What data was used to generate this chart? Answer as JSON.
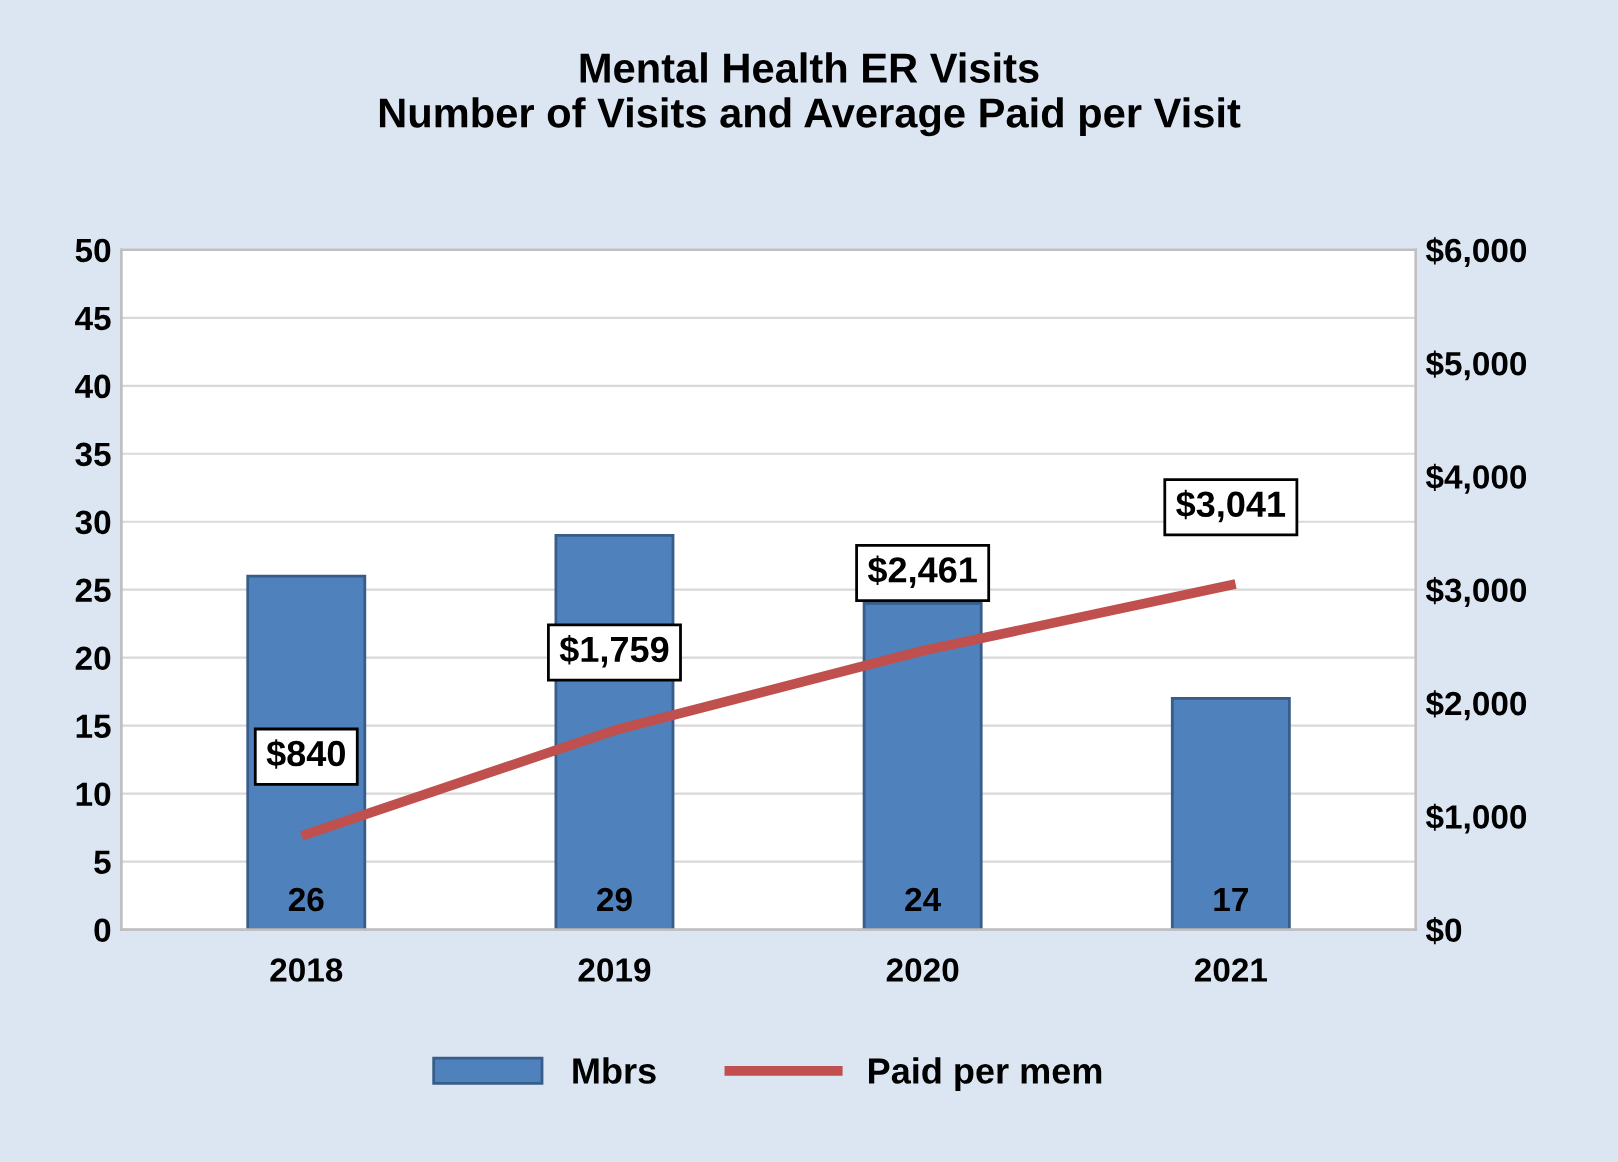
{
  "chart_data": {
    "type": "bar",
    "title": "Mental Health ER Visits\nNumber of Visits and Average Paid per Visit",
    "categories": [
      "2018",
      "2019",
      "2020",
      "2021"
    ],
    "series": [
      {
        "name": "Mbrs",
        "color": "#4f81bd",
        "values": [
          26,
          29,
          24,
          17
        ],
        "value_labels": [
          "26",
          "29",
          "24",
          "17"
        ]
      },
      {
        "name": "Paid per mem",
        "type": "line",
        "axis": "y2",
        "color": "#c0504d",
        "values": [
          840,
          1759,
          2461,
          3041
        ],
        "value_labels": [
          "$840",
          "$1,759",
          "$2,461",
          "$3,041"
        ]
      }
    ],
    "ylim": [
      0,
      50
    ],
    "yticks": [
      0,
      5,
      10,
      15,
      20,
      25,
      30,
      35,
      40,
      45,
      50
    ],
    "y2lim": [
      0,
      6000
    ],
    "y2ticks": [
      {
        "value": 0,
        "label": "$0"
      },
      {
        "value": 1000,
        "label": "$1,000"
      },
      {
        "value": 2000,
        "label": "$2,000"
      },
      {
        "value": 3000,
        "label": "$3,000"
      },
      {
        "value": 4000,
        "label": "$4,000"
      },
      {
        "value": 5000,
        "label": "$5,000"
      },
      {
        "value": 6000,
        "label": "$6,000"
      }
    ],
    "grid": "y",
    "legend": "bottom",
    "marker": "none",
    "line_style": "solid"
  }
}
